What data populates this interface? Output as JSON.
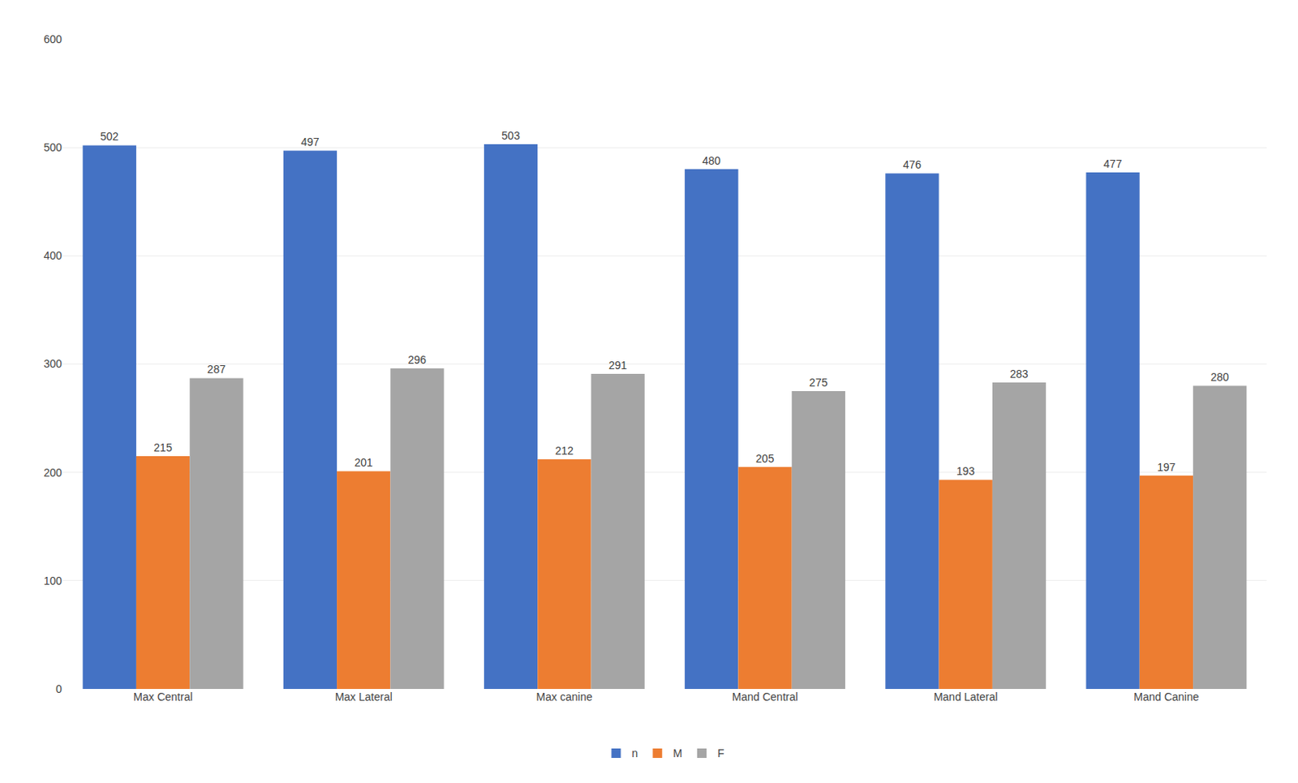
{
  "chart_data": {
    "type": "bar",
    "categories": [
      "Max Central",
      "Max Lateral",
      "Max canine",
      "Mand Central",
      "Mand Lateral",
      "Mand Canine"
    ],
    "series": [
      {
        "name": "n",
        "color": "#4472C4",
        "values": [
          502,
          497,
          503,
          480,
          476,
          477
        ]
      },
      {
        "name": "M",
        "color": "#ED7D31",
        "values": [
          215,
          201,
          212,
          205,
          193,
          197
        ]
      },
      {
        "name": "F",
        "color": "#A5A5A5",
        "values": [
          287,
          296,
          291,
          275,
          283,
          280
        ]
      }
    ],
    "ylim": [
      0,
      600
    ],
    "yticks": [
      0,
      100,
      200,
      300,
      400,
      500,
      600
    ],
    "grid": true,
    "legend": "bottom",
    "data_labels": true
  }
}
